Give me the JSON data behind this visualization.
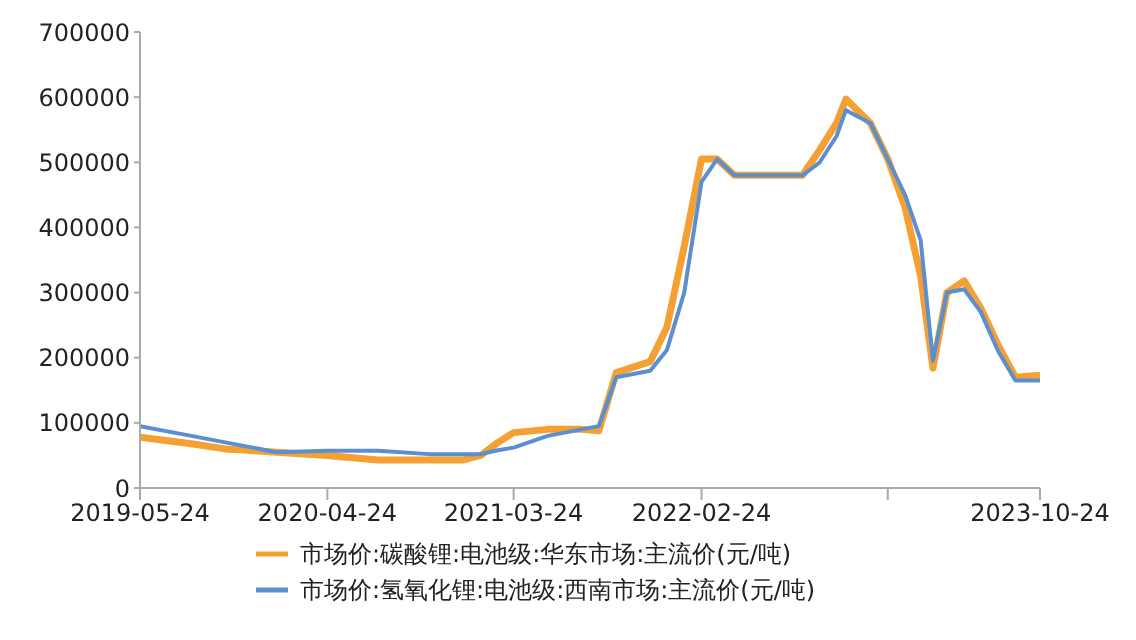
{
  "chart_data": {
    "type": "line",
    "x": [
      "2019-05-24",
      "2019-08-24",
      "2019-10-24",
      "2020-01-24",
      "2020-04-24",
      "2020-07-24",
      "2020-10-24",
      "2020-12-24",
      "2021-01-24",
      "2021-02-24",
      "2021-03-24",
      "2021-05-24",
      "2021-07-24",
      "2021-08-24",
      "2021-09-24",
      "2021-11-24",
      "2021-12-24",
      "2022-01-24",
      "2022-02-24",
      "2022-03-24",
      "2022-04-24",
      "2022-06-24",
      "2022-08-24",
      "2022-09-24",
      "2022-10-24",
      "2022-11-10",
      "2022-12-24",
      "2023-01-24",
      "2023-02-24",
      "2023-03-24",
      "2023-04-15",
      "2023-05-10",
      "2023-06-10",
      "2023-07-10",
      "2023-08-10",
      "2023-09-10",
      "2023-10-24"
    ],
    "series": [
      {
        "name": "市场价:碳酸锂:电池级:华东市场:主流价(元/吨)",
        "color": "#f5a033",
        "values": [
          78000,
          68000,
          60000,
          55000,
          50000,
          43000,
          43000,
          43000,
          50000,
          70000,
          85000,
          90000,
          90000,
          88000,
          177000,
          194000,
          247000,
          371000,
          505000,
          505000,
          480000,
          480000,
          480000,
          519000,
          560000,
          597000,
          560000,
          505000,
          431000,
          325000,
          184000,
          300000,
          318000,
          276000,
          219000,
          170000,
          173000
        ]
      },
      {
        "name": "市场价:氢氧化锂:电池级:西南市场:主流价(元/吨)",
        "color": "#5b8fd0",
        "values": [
          95000,
          80000,
          70000,
          55000,
          57000,
          57000,
          52000,
          52000,
          52000,
          58000,
          62000,
          80000,
          90000,
          95000,
          170000,
          180000,
          212000,
          300000,
          470000,
          505000,
          480000,
          480000,
          480000,
          500000,
          540000,
          580000,
          560000,
          505000,
          450000,
          380000,
          195000,
          300000,
          305000,
          270000,
          210000,
          165000,
          165000
        ]
      }
    ],
    "xlim": [
      "2019-05-24",
      "2023-10-24"
    ],
    "xticks": [
      "2019-05-24",
      "2020-04-24",
      "2021-03-24",
      "2022-02-24",
      {
        "value": "2023-01-24",
        "label": null
      },
      "2023-10-24"
    ],
    "ylim": [
      0,
      700000
    ],
    "yticks": [
      0,
      100000,
      200000,
      300000,
      400000,
      500000,
      600000,
      700000
    ],
    "grid": false,
    "legend": "bottom",
    "marker": "none",
    "line_style": "solid"
  }
}
